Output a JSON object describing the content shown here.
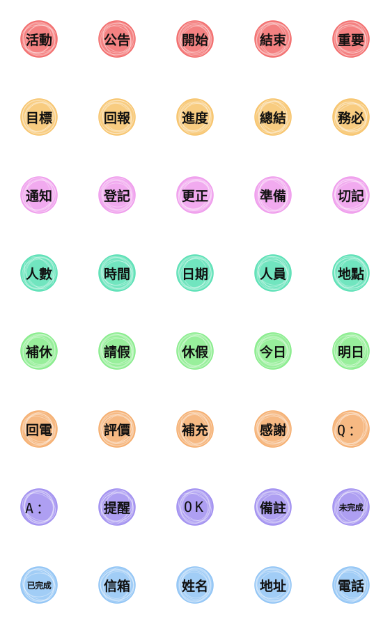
{
  "palette": {
    "red": "#f26b6b",
    "orange": "#f7c36a",
    "pink": "#ef9bec",
    "teal": "#58e0b4",
    "green": "#86ec8a",
    "apricot": "#f5ad6d",
    "violet": "#a08ef0",
    "sky": "#90c4f5"
  },
  "stickers": [
    {
      "text": "活動",
      "color": "red"
    },
    {
      "text": "公告",
      "color": "red"
    },
    {
      "text": "開始",
      "color": "red"
    },
    {
      "text": "結束",
      "color": "red"
    },
    {
      "text": "重要",
      "color": "red"
    },
    {
      "text": "目標",
      "color": "orange"
    },
    {
      "text": "回報",
      "color": "orange"
    },
    {
      "text": "進度",
      "color": "orange"
    },
    {
      "text": "總結",
      "color": "orange"
    },
    {
      "text": "務必",
      "color": "orange"
    },
    {
      "text": "通知",
      "color": "pink"
    },
    {
      "text": "登記",
      "color": "pink"
    },
    {
      "text": "更正",
      "color": "pink"
    },
    {
      "text": "準備",
      "color": "pink"
    },
    {
      "text": "切記",
      "color": "pink"
    },
    {
      "text": "人數",
      "color": "teal"
    },
    {
      "text": "時間",
      "color": "teal"
    },
    {
      "text": "日期",
      "color": "teal"
    },
    {
      "text": "人員",
      "color": "teal"
    },
    {
      "text": "地點",
      "color": "teal"
    },
    {
      "text": "補休",
      "color": "green"
    },
    {
      "text": "請假",
      "color": "green"
    },
    {
      "text": "休假",
      "color": "green"
    },
    {
      "text": "今日",
      "color": "green"
    },
    {
      "text": "明日",
      "color": "green"
    },
    {
      "text": "回電",
      "color": "apricot"
    },
    {
      "text": "評價",
      "color": "apricot"
    },
    {
      "text": "補充",
      "color": "apricot"
    },
    {
      "text": "感謝",
      "color": "apricot"
    },
    {
      "text": "Q：",
      "color": "apricot",
      "style": "latin"
    },
    {
      "text": "A：",
      "color": "violet",
      "style": "latin"
    },
    {
      "text": "提醒",
      "color": "violet"
    },
    {
      "text": "OK",
      "color": "violet",
      "style": "latin"
    },
    {
      "text": "備註",
      "color": "violet"
    },
    {
      "text": "未完成",
      "color": "violet",
      "style": "small"
    },
    {
      "text": "已完成",
      "color": "sky",
      "style": "small"
    },
    {
      "text": "信箱",
      "color": "sky"
    },
    {
      "text": "姓名",
      "color": "sky"
    },
    {
      "text": "地址",
      "color": "sky"
    },
    {
      "text": "電話",
      "color": "sky"
    }
  ]
}
